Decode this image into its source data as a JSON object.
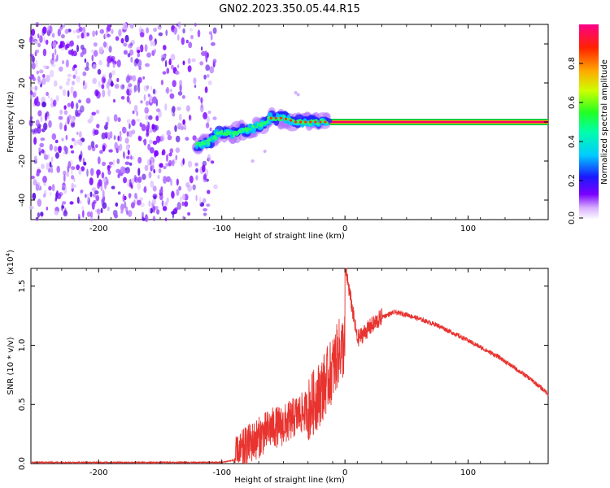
{
  "title": "GN02.2023.350.05.44.R15",
  "colors": {
    "snr_line": "#e8332f",
    "colormap": [
      "#ffffff",
      "#cc88ff",
      "#7a00ff",
      "#1a1aff",
      "#00ccff",
      "#00ff66",
      "#ffff00",
      "#ff9900",
      "#ff0000",
      "#ff00aa"
    ]
  },
  "chart_data": [
    {
      "type": "heatmap",
      "title": "",
      "xlabel": "Height of straight line (km)",
      "ylabel": "Frequency (Hz)",
      "xlim": [
        -255,
        165
      ],
      "ylim": [
        -50,
        50
      ],
      "x_ticks": [
        -200,
        -100,
        0,
        100
      ],
      "y_ticks": [
        -40,
        -20,
        0,
        20,
        40
      ],
      "colorbar": {
        "label": "Normalized spectral amplitude",
        "range": [
          0,
          1
        ],
        "ticks": [
          "0.0",
          "0.2",
          "0.4",
          "0.6",
          "0.8"
        ]
      },
      "features": {
        "noise_region_x": [
          -255,
          -105
        ],
        "signal_track": [
          [
            -120,
            -12
          ],
          [
            -110,
            -10
          ],
          [
            -100,
            -5
          ],
          [
            -90,
            -6
          ],
          [
            -80,
            -4
          ],
          [
            -70,
            -2
          ],
          [
            -60,
            2
          ],
          [
            -50,
            2
          ],
          [
            -40,
            0
          ],
          [
            -20,
            0
          ],
          [
            0,
            0
          ],
          [
            165,
            0
          ]
        ],
        "steady_line_x": [
          -40,
          165
        ],
        "steady_line_freq": 0
      }
    },
    {
      "type": "line",
      "title": "",
      "xlabel": "Height of straight line (km)",
      "ylabel": "SNR (10 * v/v)",
      "y_multiplier": "(x10",
      "y_multiplier_exp": "4",
      "y_multiplier_close": ")",
      "xlim": [
        -255,
        165
      ],
      "ylim": [
        0,
        1.65
      ],
      "x_ticks": [
        -200,
        -100,
        0,
        100
      ],
      "y_ticks": [
        "0.0",
        "0.5",
        "1.0",
        "1.5"
      ],
      "series": [
        {
          "x": [
            -255,
            -100,
            -95,
            -90,
            -80,
            -70,
            -60,
            -50,
            -40,
            -30,
            -20,
            -10,
            -5,
            0,
            0.5,
            10,
            20,
            30,
            40,
            50,
            75,
            100,
            125,
            150,
            165
          ],
          "y": [
            0.01,
            0.01,
            0.02,
            0.03,
            0.15,
            0.22,
            0.3,
            0.32,
            0.4,
            0.45,
            0.6,
            0.8,
            0.95,
            1.0,
            1.65,
            1.05,
            1.15,
            1.24,
            1.28,
            1.26,
            1.17,
            1.04,
            0.9,
            0.72,
            0.59
          ]
        }
      ]
    }
  ]
}
